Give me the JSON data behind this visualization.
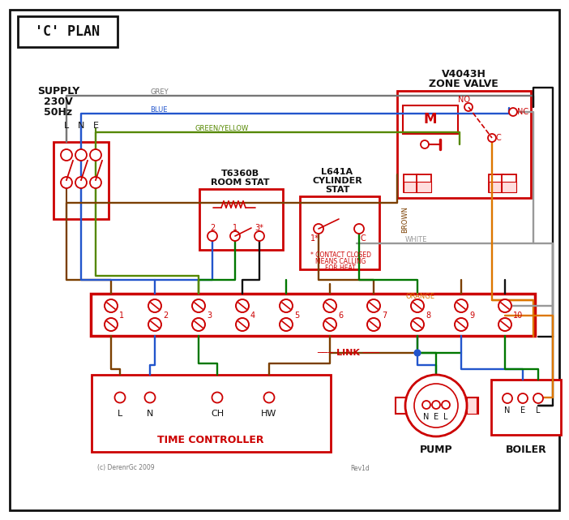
{
  "bg": "#ffffff",
  "red": "#cc0000",
  "blue": "#2255cc",
  "green": "#007700",
  "grey": "#777777",
  "black": "#111111",
  "brown": "#7B3F00",
  "orange": "#dd7700",
  "gY": "#558800",
  "white_w": "#999999",
  "title": "'C' PLAN",
  "supply1": "SUPPLY",
  "supply2": "230V",
  "supply3": "50Hz",
  "zv1": "V4043H",
  "zv2": "ZONE VALVE",
  "rs1": "T6360B",
  "rs2": "ROOM STAT",
  "cs1": "L641A",
  "cs2": "CYLINDER",
  "cs3": "STAT",
  "cn1": "* CONTACT CLOSED",
  "cn2": "MEANS CALLING",
  "cn3": "FOR HEAT",
  "time_ctrl": "TIME CONTROLLER",
  "pump": "PUMP",
  "boiler": "BOILER",
  "link_txt": "LINK",
  "grey_lbl": "GREY",
  "blue_lbl": "BLUE",
  "gy_lbl": "GREEN/YELLOW",
  "br_lbl": "BROWN",
  "wh_lbl": "WHITE",
  "or_lbl": "ORANGE",
  "copyright": "(c) DerenrGc 2009",
  "rev": "Rev1d"
}
